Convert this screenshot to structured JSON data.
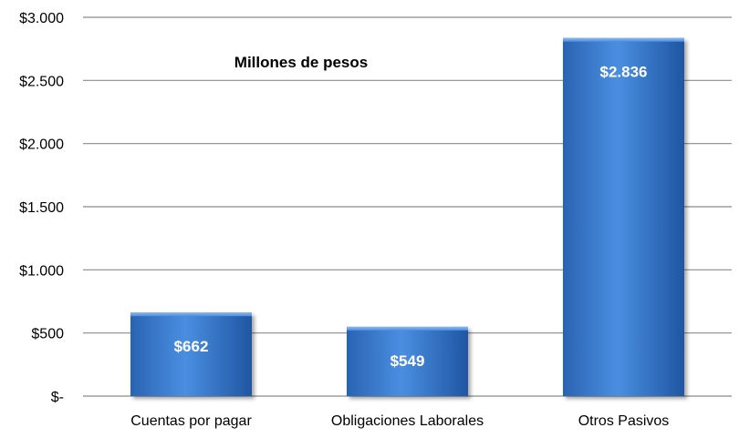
{
  "chart_data": {
    "type": "bar",
    "title": "Millones de pesos",
    "categories": [
      "Cuentas por pagar",
      "Obligaciones Laborales",
      "Otros Pasivos"
    ],
    "values": [
      662,
      549,
      2836
    ],
    "value_labels": [
      "$662",
      "$549",
      "$2.836"
    ],
    "y_ticks": [
      0,
      500,
      1000,
      1500,
      2000,
      2500,
      3000
    ],
    "y_tick_labels": [
      "$-",
      "$500",
      "$1.000",
      "$1.500",
      "$2.000",
      "$2.500",
      "$3.000"
    ],
    "ylim": [
      0,
      3000
    ],
    "grid": true,
    "legend": "none",
    "colors": {
      "bar_light": "#4a8ee0",
      "bar_dark": "#1f56a3",
      "gridline": "#8c8c8c"
    }
  }
}
